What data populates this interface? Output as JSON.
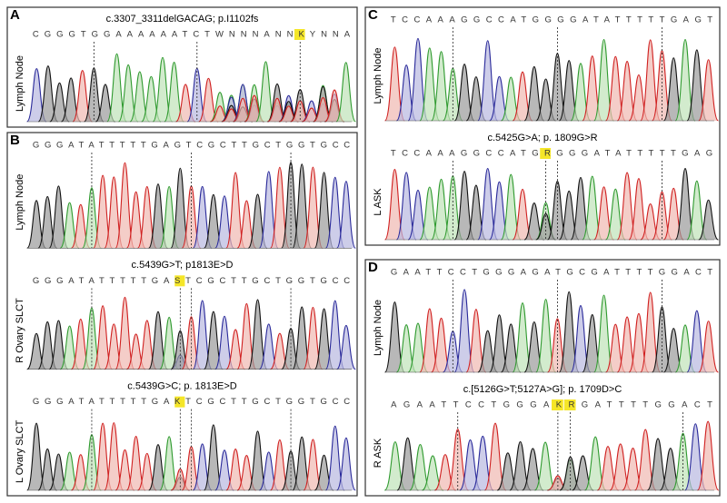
{
  "panels": [
    {
      "label": "A",
      "tracks": [
        {
          "title": "c.3307_3311delGACAG; p.I1102fs",
          "sequence": "CGGGTGGAAAAAATCTWNNNANNKYNNA",
          "sample": "Lymph Node"
        }
      ]
    },
    {
      "label": "B",
      "tracks": [
        {
          "sequence": "GGGATATTTTTGAGTCGCTTGCTGGTGCC",
          "sample": "Lymph Node"
        },
        {
          "title": "c.5439G>T; p1813E>D",
          "sequence": "GGGATATTTTTGASTCGCTTGCTGGTGCC",
          "sample": "R Ovary SLCT"
        },
        {
          "title": "c.5439G>C; p. 1813E>D",
          "sequence": "GGGATATTTTTGAKTCGCTTGCTGGTGCC",
          "sample": "L Ovary SLCT"
        }
      ]
    },
    {
      "label": "C",
      "tracks": [
        {
          "sequence": "TCCAAAGGCCATGGGGATATTTTTGAGT",
          "sample": "Lymph Node"
        },
        {
          "title": "c.5425G>A; p. 1809G>R",
          "sequence": "TCCAAAGGCCATGRGGGATATTTTTGAG",
          "sample": "L ASK"
        }
      ]
    },
    {
      "label": "D",
      "tracks": [
        {
          "sequence": "GAATTCCTGGGAGATGCGATTTTGGACT",
          "sample": "Lymph Node"
        },
        {
          "title": "c.[5126G>T;5127A>G]; p. 1709D>C",
          "sequence": "AGAATTCCTGGGAKRGATTTTGGACT",
          "sample": "R ASK"
        }
      ]
    }
  ]
}
